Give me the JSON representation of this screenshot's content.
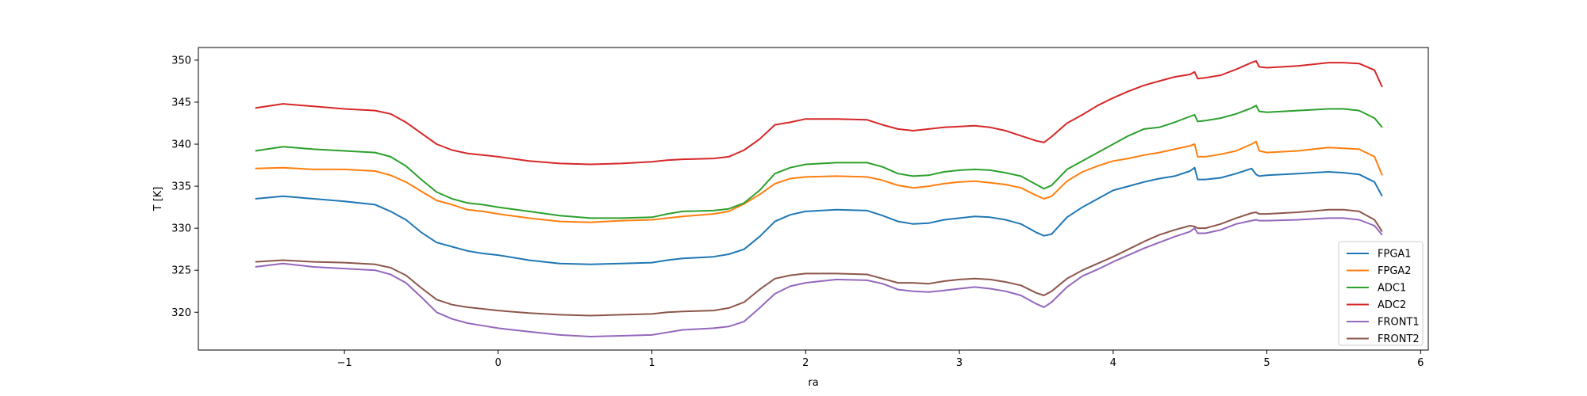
{
  "chart_data": {
    "type": "line",
    "xlabel": "ra",
    "ylabel": "T [K]",
    "xlim": [
      -1.95,
      6.05
    ],
    "ylim": [
      315.5,
      351.5
    ],
    "xticks": [
      -1,
      0,
      1,
      2,
      3,
      4,
      5,
      6
    ],
    "yticks": [
      320,
      325,
      330,
      335,
      340,
      345,
      350
    ],
    "legend_position": "lower-right",
    "grid": false,
    "x": [
      -1.58,
      -1.4,
      -1.2,
      -1.0,
      -0.8,
      -0.7,
      -0.6,
      -0.5,
      -0.4,
      -0.3,
      -0.2,
      -0.1,
      0.0,
      0.2,
      0.4,
      0.6,
      0.8,
      1.0,
      1.1,
      1.2,
      1.4,
      1.5,
      1.6,
      1.7,
      1.8,
      1.9,
      2.0,
      2.2,
      2.4,
      2.5,
      2.6,
      2.7,
      2.8,
      2.9,
      3.0,
      3.1,
      3.2,
      3.3,
      3.4,
      3.5,
      3.55,
      3.6,
      3.7,
      3.8,
      3.9,
      4.0,
      4.1,
      4.2,
      4.3,
      4.4,
      4.5,
      4.53,
      4.55,
      4.6,
      4.7,
      4.8,
      4.9,
      4.93,
      4.95,
      5.0,
      5.2,
      5.4,
      5.5,
      5.6,
      5.7,
      5.75
    ],
    "series": [
      {
        "name": "FPGA1",
        "color": "#1f77b4",
        "values": [
          333.5,
          333.8,
          333.5,
          333.2,
          332.8,
          332.0,
          331.0,
          329.5,
          328.3,
          327.8,
          327.3,
          327.0,
          326.8,
          326.2,
          325.8,
          325.7,
          325.8,
          325.9,
          326.2,
          326.4,
          326.6,
          326.9,
          327.5,
          329.0,
          330.8,
          331.6,
          332.0,
          332.2,
          332.1,
          331.5,
          330.8,
          330.5,
          330.6,
          331.0,
          331.2,
          331.4,
          331.3,
          331.0,
          330.5,
          329.5,
          329.1,
          329.3,
          331.3,
          332.5,
          333.5,
          334.5,
          335.0,
          335.5,
          335.9,
          336.2,
          336.8,
          337.2,
          335.8,
          335.8,
          336.0,
          336.5,
          337.1,
          336.4,
          336.2,
          336.3,
          336.5,
          336.7,
          336.6,
          336.4,
          335.5,
          333.8
        ]
      },
      {
        "name": "FPGA2",
        "color": "#ff7f0e",
        "values": [
          337.1,
          337.2,
          337.0,
          337.0,
          336.8,
          336.3,
          335.5,
          334.4,
          333.3,
          332.8,
          332.2,
          332.0,
          331.7,
          331.2,
          330.8,
          330.7,
          330.9,
          331.0,
          331.2,
          331.4,
          331.7,
          332.0,
          332.9,
          334.0,
          335.3,
          335.9,
          336.1,
          336.2,
          336.1,
          335.7,
          335.1,
          334.8,
          335.0,
          335.3,
          335.5,
          335.6,
          335.4,
          335.2,
          334.8,
          333.9,
          333.5,
          333.8,
          335.6,
          336.7,
          337.4,
          338.0,
          338.3,
          338.7,
          339.0,
          339.4,
          339.8,
          340.0,
          338.5,
          338.5,
          338.8,
          339.2,
          340.0,
          340.3,
          339.2,
          339.0,
          339.2,
          339.6,
          339.5,
          339.4,
          338.5,
          336.3
        ]
      },
      {
        "name": "ADC1",
        "color": "#2ca02c",
        "values": [
          339.2,
          339.7,
          339.4,
          339.2,
          339.0,
          338.5,
          337.4,
          335.8,
          334.3,
          333.5,
          333.0,
          332.8,
          332.5,
          332.0,
          331.5,
          331.2,
          331.2,
          331.3,
          331.7,
          332.0,
          332.1,
          332.3,
          333.0,
          334.5,
          336.5,
          337.2,
          337.6,
          337.8,
          337.8,
          337.3,
          336.5,
          336.2,
          336.3,
          336.7,
          336.9,
          337.0,
          336.9,
          336.6,
          336.2,
          335.2,
          334.7,
          335.1,
          337.0,
          338.0,
          339.0,
          340.0,
          341.0,
          341.8,
          342.0,
          342.6,
          343.3,
          343.5,
          342.7,
          342.8,
          343.1,
          343.6,
          344.3,
          344.6,
          343.9,
          343.8,
          344.0,
          344.2,
          344.2,
          344.0,
          343.1,
          342.0
        ]
      },
      {
        "name": "ADC2",
        "color": "#d62728",
        "values": [
          344.3,
          344.8,
          344.5,
          344.2,
          344.0,
          343.6,
          342.6,
          341.3,
          340.0,
          339.3,
          338.9,
          338.7,
          338.5,
          338.0,
          337.7,
          337.6,
          337.7,
          337.9,
          338.1,
          338.2,
          338.3,
          338.5,
          339.3,
          340.6,
          342.3,
          342.6,
          343.0,
          343.0,
          342.9,
          342.3,
          341.8,
          341.6,
          341.8,
          342.0,
          342.1,
          342.2,
          342.0,
          341.6,
          341.0,
          340.4,
          340.2,
          340.9,
          342.5,
          343.5,
          344.6,
          345.5,
          346.3,
          347.0,
          347.5,
          348.0,
          348.3,
          348.6,
          347.8,
          347.9,
          348.2,
          348.9,
          349.7,
          349.9,
          349.2,
          349.1,
          349.3,
          349.7,
          349.7,
          349.6,
          348.8,
          346.8
        ]
      },
      {
        "name": "FRONT1",
        "color": "#9467bd",
        "values": [
          325.4,
          325.8,
          325.4,
          325.2,
          325.0,
          324.5,
          323.5,
          321.8,
          320.0,
          319.2,
          318.7,
          318.4,
          318.1,
          317.7,
          317.3,
          317.1,
          317.2,
          317.3,
          317.6,
          317.9,
          318.1,
          318.3,
          318.9,
          320.5,
          322.2,
          323.1,
          323.5,
          323.9,
          323.8,
          323.4,
          322.7,
          322.5,
          322.4,
          322.6,
          322.8,
          323.0,
          322.8,
          322.5,
          322.0,
          321.0,
          320.6,
          321.2,
          323.0,
          324.3,
          325.1,
          326.0,
          326.8,
          327.6,
          328.3,
          329.0,
          329.6,
          330.0,
          329.4,
          329.4,
          329.8,
          330.5,
          330.9,
          331.0,
          330.9,
          330.9,
          331.0,
          331.2,
          331.2,
          331.0,
          330.3,
          329.2
        ]
      },
      {
        "name": "FRONT2",
        "color": "#8c564b",
        "values": [
          326.0,
          326.2,
          326.0,
          325.9,
          325.7,
          325.3,
          324.4,
          322.9,
          321.5,
          320.9,
          320.6,
          320.4,
          320.2,
          319.9,
          319.7,
          319.6,
          319.7,
          319.8,
          320.0,
          320.1,
          320.2,
          320.5,
          321.2,
          322.7,
          324.0,
          324.4,
          324.6,
          324.6,
          324.5,
          324.0,
          323.5,
          323.5,
          323.4,
          323.7,
          323.9,
          324.0,
          323.9,
          323.6,
          323.2,
          322.3,
          322.0,
          322.5,
          324.0,
          325.0,
          325.8,
          326.6,
          327.5,
          328.4,
          329.2,
          329.8,
          330.3,
          330.2,
          330.0,
          330.0,
          330.5,
          331.2,
          331.8,
          331.9,
          331.7,
          331.7,
          331.9,
          332.2,
          332.2,
          332.0,
          331.0,
          329.6
        ]
      }
    ]
  }
}
